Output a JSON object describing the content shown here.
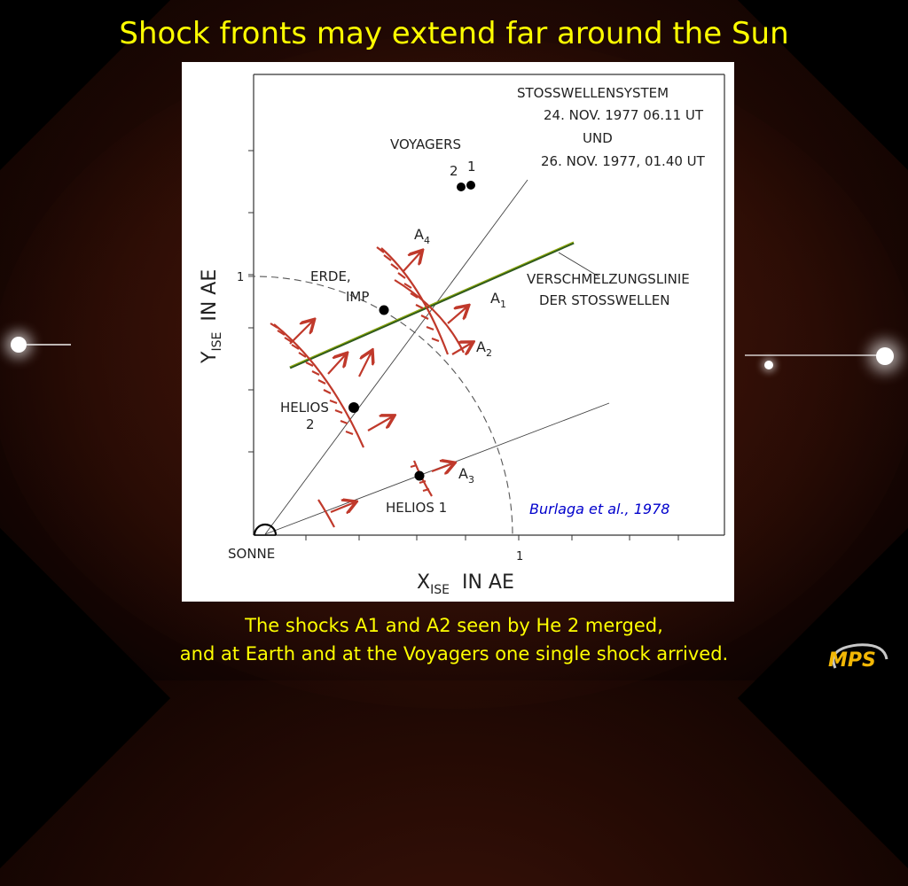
{
  "slide": {
    "title": "Shock fronts may extend far around the Sun",
    "caption_line1": "The shocks A1 and A2 seen by He 2 merged,",
    "caption_line2": "and at Earth and at the Voyagers one single shock arrived.",
    "logo_text": "MPS"
  },
  "figure": {
    "header": [
      "STOSSWELLENSYSTEM",
      "24. NOV. 1977  06.11  UT",
      "UND",
      "26. NOV. 1977, 01.40  UT"
    ],
    "voyagers_label": "VOYAGERS",
    "voyager_numbers": [
      "2",
      "1"
    ],
    "merge_line_label": [
      "VERSCHMELZUNGSLINIE",
      "DER  STOSSWELLEN"
    ],
    "erde_label": [
      "ERDE,",
      "IMP"
    ],
    "helios2_label": [
      "HELIOS",
      "2"
    ],
    "helios1_label": "HELIOS 1",
    "sonne_label": "SONNE",
    "shocks": {
      "a1": "A",
      "a1_sub": "1",
      "a2": "A",
      "a2_sub": "2",
      "a3": "A",
      "a3_sub": "3",
      "a4": "A",
      "a4_sub": "4"
    },
    "y_axis": {
      "main": "Y",
      "sub": "ISE",
      "unit": "IN   AE"
    },
    "x_axis": {
      "main": "X",
      "sub": "ISE",
      "unit": "IN   AE"
    },
    "tick_one_y": "1",
    "tick_one_x": "1",
    "credit": "Burlaga et al., 1978"
  },
  "colors": {
    "title": "#ffff00",
    "shock": "#c0392b",
    "merge_line": "#2e5a1c",
    "credit": "#0000cc"
  }
}
